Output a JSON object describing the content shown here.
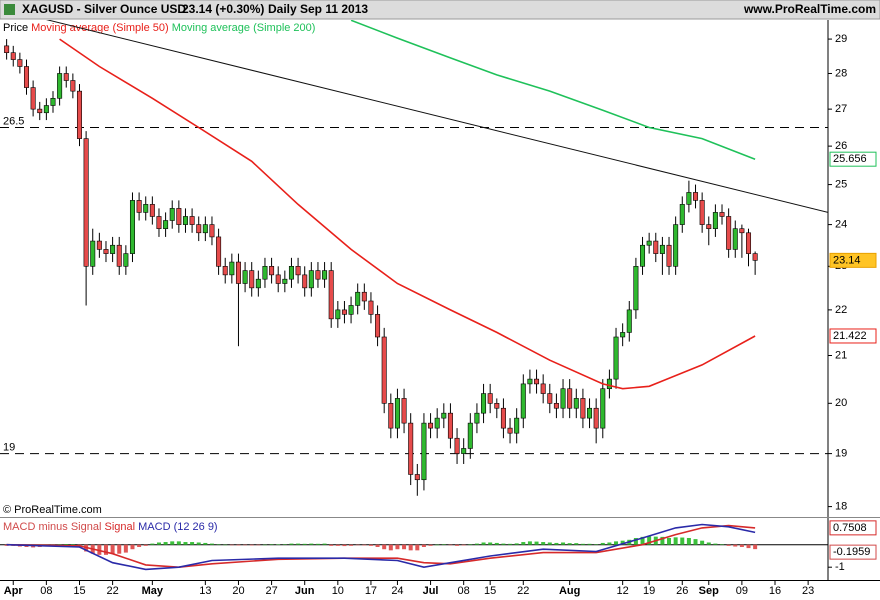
{
  "header": {
    "symbol": "XAGUSD - Silver Ounce USD",
    "quote": "23.14 (+0.30%)",
    "period": "Daily",
    "date": "Sep 11 2013",
    "site": "www.ProRealTime.com"
  },
  "chart_data": [
    {
      "type": "candlestick",
      "legend_title": "Price",
      "credit": "© ProRealTime.com",
      "log_scale": true,
      "ylim": [
        17.81,
        29.57
      ],
      "yticks": [
        18,
        19,
        20,
        21,
        22,
        23,
        24,
        25,
        26,
        27,
        28,
        29
      ],
      "xlim": [
        -2,
        123
      ],
      "xticks": [
        {
          "value": 0,
          "label": "Apr"
        },
        {
          "value": 5,
          "label": "08"
        },
        {
          "value": 10,
          "label": "15"
        },
        {
          "value": 15,
          "label": "22"
        },
        {
          "value": 21,
          "label": "May"
        },
        {
          "value": 29,
          "label": "13"
        },
        {
          "value": 34,
          "label": "20"
        },
        {
          "value": 39,
          "label": "27"
        },
        {
          "value": 44,
          "label": "Jun"
        },
        {
          "value": 49,
          "label": "10"
        },
        {
          "value": 54,
          "label": "17"
        },
        {
          "value": 58,
          "label": "24"
        },
        {
          "value": 63,
          "label": "Jul"
        },
        {
          "value": 68,
          "label": "08"
        },
        {
          "value": 72,
          "label": "15"
        },
        {
          "value": 77,
          "label": "22"
        },
        {
          "value": 84,
          "label": "Aug"
        },
        {
          "value": 92,
          "label": "12"
        },
        {
          "value": 96,
          "label": "19"
        },
        {
          "value": 101,
          "label": "26"
        },
        {
          "value": 105,
          "label": "Sep"
        },
        {
          "value": 110,
          "label": "09"
        },
        {
          "value": 115,
          "label": "16"
        },
        {
          "value": 120,
          "label": "23"
        }
      ],
      "up_color": "#2fb82f",
      "down_color": "#e64b4b",
      "x": [
        -1,
        0,
        1,
        2,
        3,
        4,
        5,
        6,
        7,
        8,
        9,
        10,
        11,
        12,
        13,
        14,
        15,
        16,
        17,
        18,
        19,
        20,
        21,
        22,
        23,
        24,
        25,
        26,
        27,
        28,
        29,
        30,
        31,
        32,
        33,
        34,
        35,
        36,
        37,
        38,
        39,
        40,
        41,
        42,
        43,
        44,
        45,
        46,
        47,
        48,
        49,
        50,
        51,
        52,
        53,
        54,
        55,
        56,
        57,
        58,
        59,
        60,
        61,
        62,
        63,
        64,
        65,
        66,
        67,
        68,
        69,
        70,
        71,
        72,
        73,
        74,
        75,
        76,
        77,
        78,
        79,
        80,
        81,
        82,
        83,
        84,
        85,
        86,
        87,
        88,
        89,
        90,
        91,
        92,
        93,
        94,
        95,
        96,
        97,
        98,
        99,
        100,
        101,
        102,
        103,
        104,
        105,
        106,
        107,
        108,
        109,
        110,
        111,
        112
      ],
      "open": [
        28.8,
        28.6,
        28.4,
        28.2,
        27.6,
        27.0,
        26.9,
        27.1,
        27.3,
        28.0,
        27.8,
        27.5,
        26.2,
        23.0,
        23.6,
        23.4,
        23.3,
        23.5,
        23.0,
        23.3,
        24.6,
        24.3,
        24.5,
        24.2,
        23.9,
        24.1,
        24.4,
        24.0,
        24.2,
        24.0,
        23.8,
        24.0,
        23.7,
        23.0,
        22.8,
        23.1,
        22.6,
        22.9,
        22.5,
        22.7,
        23.0,
        22.8,
        22.6,
        22.7,
        23.0,
        22.8,
        22.5,
        22.9,
        22.7,
        22.9,
        21.8,
        22.0,
        21.9,
        22.1,
        22.4,
        22.2,
        21.9,
        21.4,
        20.0,
        19.5,
        20.1,
        19.6,
        18.6,
        18.5,
        19.6,
        19.5,
        19.7,
        19.8,
        19.3,
        19.0,
        19.1,
        19.6,
        19.8,
        20.2,
        20.0,
        19.9,
        19.5,
        19.4,
        19.7,
        20.4,
        20.5,
        20.4,
        20.2,
        20.0,
        19.9,
        20.3,
        19.9,
        20.1,
        19.7,
        19.9,
        19.5,
        20.3,
        20.5,
        21.4,
        21.5,
        22.0,
        23.0,
        23.5,
        23.6,
        23.3,
        23.5,
        23.0,
        24.0,
        24.5,
        24.8,
        24.6,
        24.0,
        23.9,
        24.3,
        24.2,
        23.4,
        23.9,
        23.8,
        23.3
      ],
      "high": [
        29.0,
        28.8,
        28.6,
        28.4,
        27.8,
        27.2,
        27.3,
        27.5,
        28.2,
        28.2,
        28.0,
        27.7,
        26.4,
        23.9,
        23.8,
        23.6,
        23.7,
        23.7,
        23.5,
        24.8,
        24.8,
        24.7,
        24.7,
        24.4,
        24.3,
        24.6,
        24.6,
        24.4,
        24.4,
        24.2,
        24.2,
        24.2,
        23.9,
        23.2,
        23.3,
        23.3,
        23.1,
        23.1,
        22.9,
        23.2,
        23.2,
        23.0,
        22.9,
        23.2,
        23.2,
        23.0,
        23.1,
        23.1,
        23.1,
        23.1,
        22.2,
        22.2,
        22.3,
        22.6,
        22.6,
        22.4,
        22.1,
        21.6,
        20.2,
        20.3,
        20.3,
        19.8,
        18.8,
        19.8,
        19.8,
        19.9,
        20.0,
        20.0,
        19.5,
        19.3,
        19.8,
        20.0,
        20.4,
        20.4,
        20.1,
        20.1,
        19.7,
        19.9,
        20.6,
        20.7,
        20.7,
        20.6,
        20.4,
        20.2,
        20.5,
        20.5,
        20.3,
        20.3,
        20.1,
        20.1,
        20.5,
        20.7,
        21.6,
        21.7,
        22.2,
        23.2,
        23.7,
        23.8,
        23.8,
        23.7,
        23.7,
        24.2,
        24.7,
        25.1,
        25.0,
        24.8,
        24.2,
        24.5,
        24.5,
        24.4,
        24.1,
        24.0,
        23.9,
        23.35
      ],
      "low": [
        28.4,
        28.2,
        28.0,
        27.4,
        26.8,
        26.7,
        26.7,
        26.9,
        27.1,
        27.6,
        27.3,
        26.0,
        22.1,
        22.8,
        23.2,
        23.1,
        23.1,
        22.8,
        22.8,
        23.1,
        24.1,
        24.1,
        24.0,
        23.7,
        23.7,
        23.9,
        23.8,
        23.8,
        23.8,
        23.6,
        23.6,
        23.5,
        22.8,
        22.6,
        22.6,
        21.2,
        22.4,
        22.3,
        22.3,
        22.5,
        22.6,
        22.4,
        22.4,
        22.5,
        22.6,
        22.3,
        22.3,
        22.5,
        22.5,
        21.6,
        21.6,
        21.7,
        21.7,
        21.9,
        22.0,
        21.7,
        21.2,
        19.8,
        19.3,
        19.3,
        19.4,
        18.4,
        18.2,
        18.3,
        19.3,
        19.3,
        19.5,
        19.1,
        18.8,
        18.8,
        18.9,
        19.4,
        19.6,
        19.8,
        19.7,
        19.3,
        19.2,
        19.2,
        19.5,
        20.2,
        20.2,
        20.0,
        19.8,
        19.7,
        19.7,
        19.7,
        19.7,
        19.5,
        19.5,
        19.2,
        19.3,
        20.1,
        20.3,
        21.2,
        21.3,
        21.8,
        22.8,
        23.3,
        23.1,
        22.8,
        22.8,
        22.8,
        23.8,
        24.3,
        24.4,
        23.8,
        23.5,
        23.7,
        24.0,
        23.2,
        23.2,
        23.2,
        23.0,
        22.8
      ],
      "close": [
        28.6,
        28.4,
        28.2,
        27.6,
        27.0,
        26.9,
        27.1,
        27.3,
        28.0,
        27.8,
        27.5,
        26.2,
        23.0,
        23.6,
        23.4,
        23.3,
        23.5,
        23.0,
        23.3,
        24.6,
        24.3,
        24.5,
        24.2,
        23.9,
        24.1,
        24.4,
        24.0,
        24.2,
        24.0,
        23.8,
        24.0,
        23.7,
        23.0,
        22.8,
        23.1,
        22.6,
        22.9,
        22.5,
        22.7,
        23.0,
        22.8,
        22.6,
        22.7,
        23.0,
        22.8,
        22.5,
        22.9,
        22.7,
        22.9,
        21.8,
        22.0,
        21.9,
        22.1,
        22.4,
        22.2,
        21.9,
        21.4,
        20.0,
        19.5,
        20.1,
        19.6,
        18.6,
        18.5,
        19.6,
        19.5,
        19.7,
        19.8,
        19.3,
        19.0,
        19.1,
        19.6,
        19.8,
        20.2,
        20.0,
        19.9,
        19.5,
        19.4,
        19.7,
        20.4,
        20.5,
        20.4,
        20.2,
        20.0,
        19.9,
        20.3,
        19.9,
        20.1,
        19.7,
        19.9,
        19.5,
        20.3,
        20.5,
        21.4,
        21.5,
        22.0,
        23.0,
        23.5,
        23.6,
        23.3,
        23.5,
        23.0,
        24.0,
        24.5,
        24.8,
        24.6,
        24.0,
        23.9,
        24.3,
        24.2,
        23.4,
        23.9,
        23.8,
        23.3,
        23.14
      ],
      "series": [
        {
          "name": "Moving average (Simple 50)",
          "color": "#e8201a",
          "x": [
            7,
            13,
            21,
            28,
            36,
            43,
            51,
            58,
            66,
            73,
            81,
            89,
            92,
            96,
            104,
            112
          ],
          "values": [
            29.0,
            28.2,
            27.3,
            26.5,
            25.6,
            24.5,
            23.4,
            22.6,
            22.0,
            21.5,
            20.9,
            20.4,
            20.3,
            20.35,
            20.8,
            21.422
          ]
        },
        {
          "name": "Moving average (Simple 200)",
          "color": "#1fc15a",
          "x": [
            51,
            58,
            66,
            73,
            81,
            89,
            96,
            104,
            112
          ],
          "values": [
            29.56,
            29.03,
            28.45,
            27.96,
            27.5,
            26.97,
            26.5,
            26.2,
            25.656
          ]
        }
      ],
      "levels": [
        26.5,
        19
      ],
      "trendline": {
        "x": [
          -2,
          123
        ],
        "values": [
          29.93,
          24.3
        ]
      }
    },
    {
      "type": "macd",
      "ylim": [
        -1.57,
        1.19
      ],
      "yticks": [
        -1
      ],
      "histogram": {
        "name": "MACD minus Signal",
        "color": "#d04a4a",
        "positive_color": "#3cc03c",
        "negative_color": "#e05555",
        "values": [
          -0.05,
          -0.05,
          -0.08,
          -0.1,
          -0.12,
          -0.1,
          -0.08,
          -0.05,
          0.02,
          0.03,
          0.02,
          -0.05,
          -0.3,
          -0.4,
          -0.45,
          -0.45,
          -0.4,
          -0.4,
          -0.35,
          -0.2,
          -0.1,
          -0.05,
          0.05,
          0.1,
          0.12,
          0.15,
          0.15,
          0.12,
          0.12,
          0.1,
          0.08,
          0.05,
          0.02,
          0.0,
          -0.02,
          -0.03,
          -0.02,
          -0.03,
          -0.02,
          0.0,
          0.02,
          0.01,
          0.02,
          0.05,
          0.05,
          0.04,
          0.05,
          0.04,
          0.05,
          -0.05,
          -0.05,
          -0.06,
          -0.05,
          -0.02,
          -0.03,
          -0.05,
          -0.1,
          -0.2,
          -0.25,
          -0.2,
          -0.2,
          -0.25,
          -0.25,
          -0.1,
          -0.05,
          0.0,
          0.02,
          -0.02,
          -0.05,
          -0.03,
          0.02,
          0.05,
          0.1,
          0.1,
          0.08,
          0.05,
          0.04,
          0.06,
          0.12,
          0.15,
          0.14,
          0.12,
          0.1,
          0.08,
          0.1,
          0.07,
          0.07,
          0.04,
          0.04,
          0.02,
          0.08,
          0.1,
          0.15,
          0.18,
          0.22,
          0.3,
          0.35,
          0.38,
          0.36,
          0.35,
          0.3,
          0.33,
          0.32,
          0.3,
          0.25,
          0.18,
          0.1,
          0.05,
          0.02,
          -0.05,
          -0.08,
          -0.1,
          -0.15,
          -0.1959
        ]
      },
      "series": [
        {
          "name": "Signal",
          "color": "#d62a2a",
          "x": [
            -1,
            10,
            15,
            20,
            25,
            30,
            40,
            50,
            58,
            62,
            66,
            72,
            80,
            88,
            95,
            100,
            104,
            108,
            112
          ],
          "values": [
            0.0,
            -0.05,
            -0.4,
            -0.9,
            -1.0,
            -0.85,
            -0.65,
            -0.6,
            -0.6,
            -0.8,
            -0.85,
            -0.6,
            -0.35,
            -0.35,
            0.0,
            0.45,
            0.75,
            0.85,
            0.7508
          ]
        },
        {
          "name": "MACD (12 26 9)",
          "color": "#2a2aa8",
          "x": [
            -1,
            10,
            15,
            20,
            25,
            30,
            40,
            50,
            58,
            62,
            66,
            72,
            80,
            88,
            95,
            100,
            104,
            108,
            112
          ],
          "values": [
            0.0,
            -0.1,
            -0.8,
            -1.1,
            -1.0,
            -0.7,
            -0.6,
            -0.6,
            -0.7,
            -1.0,
            -0.8,
            -0.5,
            -0.2,
            -0.3,
            0.3,
            0.75,
            0.9,
            0.8,
            0.55
          ]
        }
      ]
    }
  ]
}
